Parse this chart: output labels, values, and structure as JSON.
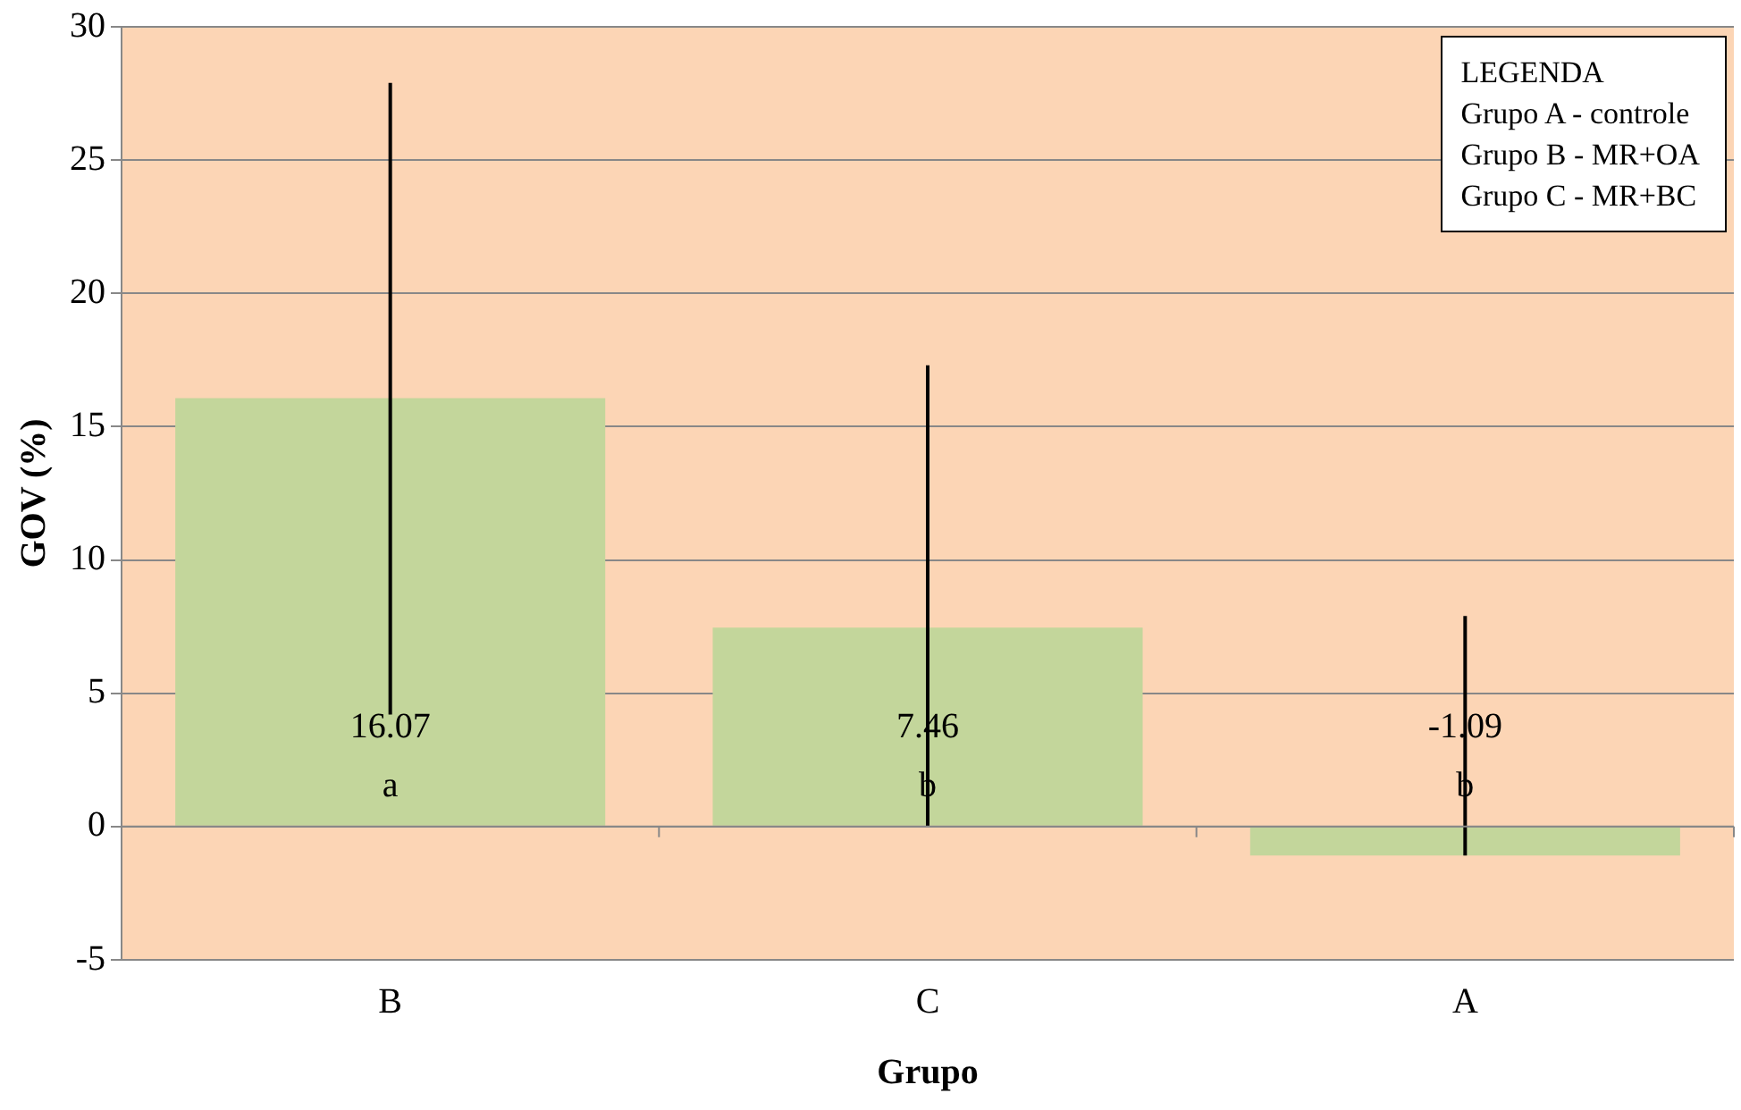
{
  "chart_data": {
    "type": "bar",
    "xlabel": "Grupo",
    "ylabel": "GOV (%)",
    "categories": [
      "B",
      "C",
      "A"
    ],
    "values": [
      16.07,
      7.46,
      -1.09
    ],
    "color": "#c3d69b",
    "errors": [
      [
        4.2,
        27.9
      ],
      [
        0,
        17.3
      ],
      [
        -1.09,
        7.9
      ]
    ],
    "value_labels": [
      "16.07\na",
      "7.46\nb",
      "-1.09\nb"
    ],
    "ylim": [
      -5,
      30
    ],
    "yticks": [
      -5,
      0,
      5,
      10,
      15,
      20,
      25,
      30
    ],
    "grid": "y",
    "legend": false,
    "annotations": [
      "LEGENDA",
      "Grupo A - controle",
      "Grupo B - MR+OA",
      "Grupo C - MR+BC"
    ]
  }
}
